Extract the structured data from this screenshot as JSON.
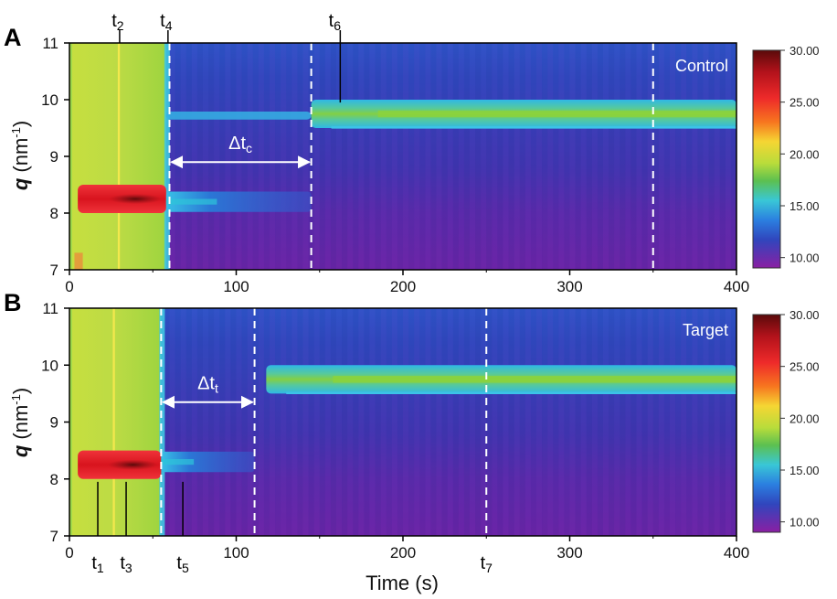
{
  "chart_data": [
    {
      "type": "heatmap",
      "panel": "A",
      "corner_label": "Control",
      "xlabel": "",
      "ylabel_q": "q",
      "ylabel_unit": " (nm",
      "ylabel_exp": "-1",
      "ylabel_close": ")",
      "xlim": [
        0,
        400
      ],
      "ylim": [
        7,
        11
      ],
      "x_ticks": [
        "0",
        "100",
        "200",
        "300",
        "400"
      ],
      "y_ticks": [
        "7",
        "8",
        "9",
        "10",
        "11"
      ],
      "colorbar": {
        "ticks": [
          "30.00",
          "25.00",
          "20.00",
          "15.00",
          "10.00"
        ],
        "range": [
          9,
          30
        ]
      },
      "dashed_lines_x": [
        60,
        145,
        350
      ],
      "time_marks": [
        {
          "label": "t2",
          "base": "t",
          "sub": "2",
          "x": 29
        },
        {
          "label": "t4",
          "base": "t",
          "sub": "4",
          "x": 58
        },
        {
          "label": "t6",
          "base": "t",
          "sub": "6",
          "x": 158
        }
      ],
      "interval": {
        "label": "Δtc",
        "base": "Δt",
        "sub": "c",
        "x_start": 60,
        "x_end": 145,
        "q": 8.9
      },
      "features": [
        {
          "name": "initial phase",
          "t_start": 0,
          "t_end": 58,
          "q_start": 7,
          "q_end": 11,
          "intensity": 17
        },
        {
          "name": "peak at q≈8.2",
          "t_start": 5,
          "t_end": 58,
          "q": 8.25,
          "intensity": 26
        },
        {
          "name": "peak at q≈8.2",
          "t_start": 58,
          "t_end": 145,
          "q": 8.2,
          "intensity": 13
        },
        {
          "name": "peak at q≈9.75",
          "t_start": 58,
          "t_end": 145,
          "q": 9.72,
          "intensity": 13
        },
        {
          "name": "peak at q≈9.75",
          "t_start": 145,
          "t_end": 400,
          "q": 9.75,
          "intensity": 16
        }
      ]
    },
    {
      "type": "heatmap",
      "panel": "B",
      "corner_label": "Target",
      "xlabel": "Time (s)",
      "ylabel_q": "q",
      "ylabel_unit": " (nm",
      "ylabel_exp": "-1",
      "ylabel_close": ")",
      "xlim": [
        0,
        400
      ],
      "ylim": [
        7,
        11
      ],
      "x_ticks": [
        "0",
        "100",
        "200",
        "300",
        "400"
      ],
      "y_ticks": [
        "7",
        "8",
        "9",
        "10",
        "11"
      ],
      "colorbar": {
        "ticks": [
          "30.00",
          "25.00",
          "20.00",
          "15.00",
          "10.00"
        ],
        "range": [
          9,
          30
        ]
      },
      "dashed_lines_x": [
        55,
        111,
        250
      ],
      "time_marks": [
        {
          "label": "t1",
          "base": "t",
          "sub": "1",
          "x": 17
        },
        {
          "label": "t3",
          "base": "t",
          "sub": "3",
          "x": 34
        },
        {
          "label": "t5",
          "base": "t",
          "sub": "5",
          "x": 68
        },
        {
          "label": "t7",
          "base": "t",
          "sub": "7",
          "x": 250
        }
      ],
      "interval": {
        "label": "Δtt",
        "base": "Δt",
        "sub": "t",
        "x_start": 55,
        "x_end": 111,
        "q": 9.35
      },
      "features": [
        {
          "name": "initial phase",
          "t_start": 0,
          "t_end": 55,
          "q_start": 7,
          "q_end": 11,
          "intensity": 17
        },
        {
          "name": "peak at q≈8.2",
          "t_start": 5,
          "t_end": 55,
          "q": 8.25,
          "intensity": 26
        },
        {
          "name": "peak at q≈8.2",
          "t_start": 55,
          "t_end": 111,
          "q": 8.3,
          "intensity": 13
        },
        {
          "name": "peak at q≈9.8",
          "t_start": 118,
          "t_end": 400,
          "q": 9.75,
          "intensity": 16
        }
      ]
    }
  ]
}
